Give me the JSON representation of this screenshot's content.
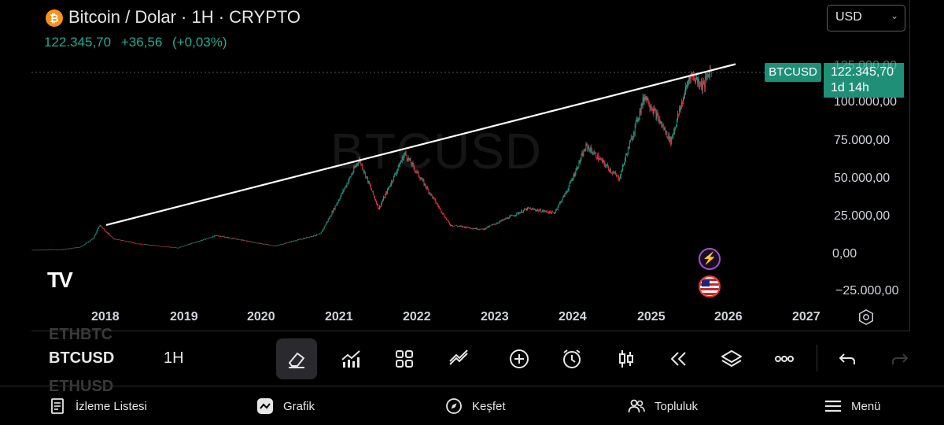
{
  "header": {
    "logo_glyph": "₿",
    "title": "Bitcoin / Dolar · 1H · CRYPTO",
    "price": "122.345,70",
    "change": "+36,56",
    "change_pct": "(+0,03%)",
    "currency": "USD",
    "currency_chevron": "⌄"
  },
  "chart": {
    "watermark": "BTCUSD",
    "y_labels": [
      "100.000,00",
      "75.000,00",
      "50.000,00",
      "25.000,00",
      "0,00",
      "−25.000,00"
    ],
    "x_labels": [
      "2018",
      "2019",
      "2020",
      "2021",
      "2022",
      "2023",
      "2024",
      "2025",
      "2026",
      "2027"
    ],
    "symbol_badge": "BTCUSD",
    "price_badge": "122.345,70",
    "countdown": "1d 14h",
    "badge_ghost": "125.000,00",
    "tv_logo": "TV",
    "event_flash": "⚡"
  },
  "chart_data": {
    "type": "candlestick",
    "ylim": [
      -25000,
      125000
    ],
    "current_price": 122345.7,
    "trendline": [
      {
        "x": "2018-01",
        "y": 19000
      },
      {
        "x": "2026-01",
        "y": 125000
      }
    ],
    "monthly_close": [
      {
        "x": "2017-06",
        "y": 2500
      },
      {
        "x": "2017-09",
        "y": 4300
      },
      {
        "x": "2017-11",
        "y": 10000
      },
      {
        "x": "2017-12",
        "y": 19000
      },
      {
        "x": "2018-02",
        "y": 10000
      },
      {
        "x": "2018-06",
        "y": 6400
      },
      {
        "x": "2018-12",
        "y": 3700
      },
      {
        "x": "2019-06",
        "y": 12000
      },
      {
        "x": "2019-12",
        "y": 7200
      },
      {
        "x": "2020-03",
        "y": 5000
      },
      {
        "x": "2020-10",
        "y": 13000
      },
      {
        "x": "2020-12",
        "y": 29000
      },
      {
        "x": "2021-04",
        "y": 63000
      },
      {
        "x": "2021-07",
        "y": 30000
      },
      {
        "x": "2021-11",
        "y": 67000
      },
      {
        "x": "2022-06",
        "y": 19000
      },
      {
        "x": "2022-11",
        "y": 16000
      },
      {
        "x": "2023-06",
        "y": 30000
      },
      {
        "x": "2023-10",
        "y": 27000
      },
      {
        "x": "2023-12",
        "y": 42000
      },
      {
        "x": "2024-03",
        "y": 72000
      },
      {
        "x": "2024-08",
        "y": 50000
      },
      {
        "x": "2024-12",
        "y": 106000
      },
      {
        "x": "2025-04",
        "y": 75000
      },
      {
        "x": "2025-07",
        "y": 120000
      },
      {
        "x": "2025-09",
        "y": 112000
      },
      {
        "x": "2025-10",
        "y": 122345
      }
    ]
  },
  "toolbar": {
    "symbol_prev": "ETHBTC",
    "symbol_current": "BTCUSD",
    "symbol_next": "ETHUSD",
    "interval": "1H"
  },
  "nav": {
    "watchlist": "İzleme Listesi",
    "chart": "Grafik",
    "explore": "Keşfet",
    "community": "Topluluk",
    "menu": "Menü"
  },
  "colors": {
    "up": "#22ab94",
    "down": "#f23645",
    "badge": "#1f8f78",
    "trendline": "#ffffff"
  }
}
